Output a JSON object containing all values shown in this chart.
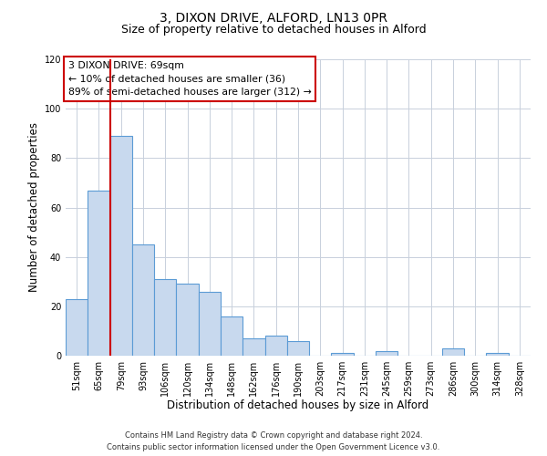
{
  "title": "3, DIXON DRIVE, ALFORD, LN13 0PR",
  "subtitle": "Size of property relative to detached houses in Alford",
  "xlabel": "Distribution of detached houses by size in Alford",
  "ylabel": "Number of detached properties",
  "bar_labels": [
    "51sqm",
    "65sqm",
    "79sqm",
    "93sqm",
    "106sqm",
    "120sqm",
    "134sqm",
    "148sqm",
    "162sqm",
    "176sqm",
    "190sqm",
    "203sqm",
    "217sqm",
    "231sqm",
    "245sqm",
    "259sqm",
    "273sqm",
    "286sqm",
    "300sqm",
    "314sqm",
    "328sqm"
  ],
  "bar_values": [
    23,
    67,
    89,
    45,
    31,
    29,
    26,
    16,
    7,
    8,
    6,
    0,
    1,
    0,
    2,
    0,
    0,
    3,
    0,
    1,
    0
  ],
  "bar_color": "#c8d9ee",
  "bar_edge_color": "#5b9bd5",
  "bar_linewidth": 0.8,
  "vline_index": 1.5,
  "vline_color": "#cc0000",
  "vline_linewidth": 1.5,
  "ylim": [
    0,
    120
  ],
  "yticks": [
    0,
    20,
    40,
    60,
    80,
    100,
    120
  ],
  "annotation_title": "3 DIXON DRIVE: 69sqm",
  "annotation_line1": "← 10% of detached houses are smaller (36)",
  "annotation_line2": "89% of semi-detached houses are larger (312) →",
  "annotation_box_color": "#ffffff",
  "annotation_border_color": "#cc0000",
  "footer_line1": "Contains HM Land Registry data © Crown copyright and database right 2024.",
  "footer_line2": "Contains public sector information licensed under the Open Government Licence v3.0.",
  "bg_color": "#ffffff",
  "grid_color": "#c8d0dc",
  "title_fontsize": 10,
  "subtitle_fontsize": 9,
  "axis_label_fontsize": 8.5,
  "tick_fontsize": 7,
  "annotation_fontsize": 7.8,
  "footer_fontsize": 6
}
